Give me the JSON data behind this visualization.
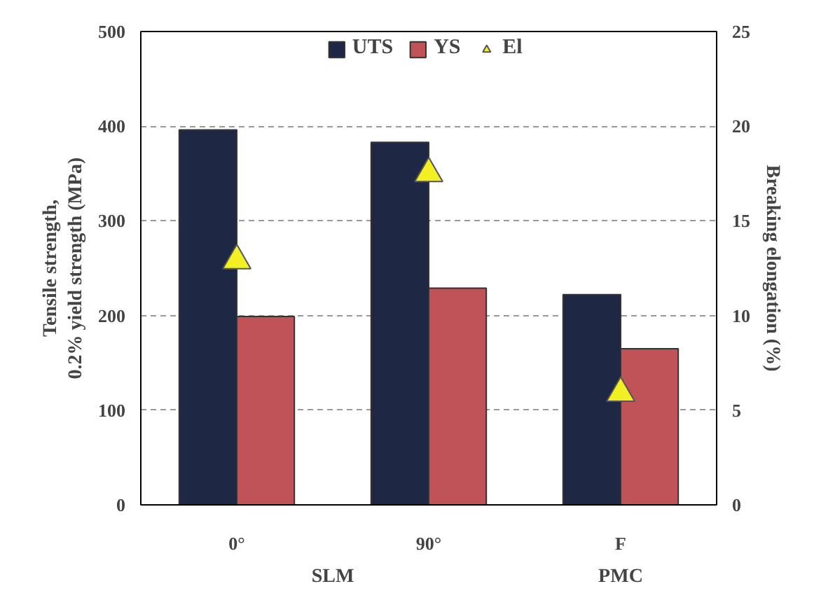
{
  "chart_data": {
    "type": "bar",
    "categories": [
      "0°",
      "90°",
      "F"
    ],
    "ylabel": "Tensile strength,\n0.2% yield strength (MPa)",
    "y2label": "Breaking elongation (%)",
    "series": [
      {
        "name": "UTS",
        "color": "#1e2844",
        "values": [
          396,
          383,
          222
        ]
      },
      {
        "name": "YS",
        "color": "#bf5358",
        "values": [
          199,
          229,
          165
        ]
      },
      {
        "name": "El",
        "type": "scatter",
        "axis": "y2",
        "marker": "triangle",
        "color": "#f2f022",
        "values": [
          12.9,
          17.5,
          5.9
        ]
      }
    ],
    "ylim": [
      0,
      500
    ],
    "yticks": [
      0,
      100,
      200,
      300,
      400,
      500
    ],
    "y2lim": [
      0,
      25
    ],
    "y2ticks": [
      0,
      5,
      10,
      15,
      20,
      25
    ],
    "grid": "y",
    "legend": "top",
    "annotations": [
      "SLM",
      "PMC"
    ]
  }
}
